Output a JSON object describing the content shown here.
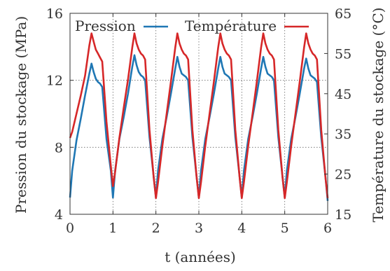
{
  "chart_data": {
    "type": "line",
    "xlabel": "t (années)",
    "ylabel_left": "Pression du stockage (MPa)",
    "ylabel_right": "Température du stockage (°C)",
    "x_ticks": [
      "0",
      "1",
      "2",
      "3",
      "4",
      "5",
      "6"
    ],
    "y_left_ticks": [
      "4",
      "8",
      "12",
      "16"
    ],
    "y_right_ticks": [
      "15",
      "25",
      "35",
      "45",
      "55",
      "65"
    ],
    "xlim": [
      0,
      6
    ],
    "ylim_left": [
      4,
      16
    ],
    "ylim_right": [
      15,
      65
    ],
    "grid": "dotted",
    "legend_position": "top",
    "series": [
      {
        "name": "Pression",
        "axis": "left",
        "color": "#1f77b4",
        "x": [
          0,
          0.05,
          0.15,
          0.25,
          0.35,
          0.45,
          0.5,
          0.55,
          0.6,
          0.65,
          0.7,
          0.75,
          0.85,
          0.95,
          1.0,
          1.05,
          1.15,
          1.25,
          1.35,
          1.45,
          1.5,
          1.55,
          1.6,
          1.65,
          1.7,
          1.75,
          1.85,
          1.95,
          2.0,
          2.05,
          2.15,
          2.25,
          2.35,
          2.45,
          2.5,
          2.55,
          2.6,
          2.65,
          2.7,
          2.75,
          2.85,
          2.95,
          3.0,
          3.05,
          3.15,
          3.25,
          3.35,
          3.45,
          3.5,
          3.55,
          3.6,
          3.65,
          3.7,
          3.75,
          3.85,
          3.95,
          4.0,
          4.05,
          4.15,
          4.25,
          4.35,
          4.45,
          4.5,
          4.55,
          4.6,
          4.65,
          4.7,
          4.75,
          4.85,
          4.95,
          5.0,
          5.05,
          5.15,
          5.25,
          5.35,
          5.45,
          5.5,
          5.55,
          5.6,
          5.65,
          5.7,
          5.75,
          5.85,
          5.95,
          6.0
        ],
        "y": [
          5.0,
          6.6,
          8.4,
          9.7,
          11.1,
          12.4,
          13.0,
          12.5,
          12.1,
          11.9,
          11.8,
          11.6,
          8.5,
          6.6,
          5.0,
          6.6,
          8.5,
          9.8,
          11.2,
          12.8,
          13.5,
          12.9,
          12.5,
          12.3,
          12.2,
          12.0,
          8.6,
          6.2,
          5.0,
          6.6,
          8.5,
          9.8,
          11.2,
          12.7,
          13.4,
          12.8,
          12.4,
          12.3,
          12.2,
          12.0,
          8.6,
          6.2,
          5.0,
          6.6,
          8.5,
          9.8,
          11.2,
          12.7,
          13.4,
          12.8,
          12.4,
          12.3,
          12.2,
          12.0,
          8.6,
          6.2,
          5.0,
          6.6,
          8.5,
          9.8,
          11.2,
          12.7,
          13.4,
          12.8,
          12.4,
          12.3,
          12.2,
          12.0,
          8.6,
          6.2,
          5.0,
          6.6,
          8.5,
          9.8,
          11.2,
          12.7,
          13.3,
          12.7,
          12.3,
          12.2,
          12.1,
          11.9,
          8.6,
          6.2,
          4.8
        ]
      },
      {
        "name": "Température",
        "axis": "right",
        "color": "#d62728",
        "x": [
          0,
          0.05,
          0.15,
          0.25,
          0.35,
          0.45,
          0.5,
          0.55,
          0.6,
          0.65,
          0.7,
          0.75,
          0.85,
          0.95,
          1.0,
          1.05,
          1.15,
          1.25,
          1.35,
          1.45,
          1.5,
          1.55,
          1.6,
          1.65,
          1.7,
          1.75,
          1.85,
          1.95,
          2.0,
          2.05,
          2.15,
          2.25,
          2.35,
          2.45,
          2.5,
          2.55,
          2.6,
          2.65,
          2.7,
          2.75,
          2.85,
          2.95,
          3.0,
          3.05,
          3.15,
          3.25,
          3.35,
          3.45,
          3.5,
          3.55,
          3.6,
          3.65,
          3.7,
          3.75,
          3.85,
          3.95,
          4.0,
          4.05,
          4.15,
          4.25,
          4.35,
          4.45,
          4.5,
          4.55,
          4.6,
          4.65,
          4.7,
          4.75,
          4.85,
          4.95,
          5.0,
          5.05,
          5.15,
          5.25,
          5.35,
          5.45,
          5.5,
          5.55,
          5.6,
          5.65,
          5.7,
          5.75,
          5.85,
          5.95,
          6.0
        ],
        "y": [
          34.0,
          35.5,
          40.0,
          44.5,
          49.5,
          57.0,
          60.0,
          58.0,
          56.0,
          55.0,
          54.0,
          53.0,
          38.0,
          27.0,
          22.0,
          25.5,
          34.0,
          41.5,
          48.5,
          56.5,
          60.0,
          57.5,
          56.0,
          55.0,
          54.5,
          53.5,
          36.0,
          24.0,
          19.0,
          23.0,
          32.0,
          40.0,
          48.0,
          56.5,
          60.0,
          57.5,
          56.0,
          55.0,
          54.5,
          53.5,
          36.0,
          24.0,
          19.0,
          23.0,
          32.0,
          40.0,
          48.0,
          56.5,
          60.0,
          57.5,
          56.0,
          55.0,
          54.5,
          53.5,
          36.0,
          24.0,
          19.0,
          23.0,
          32.0,
          40.0,
          48.0,
          56.5,
          60.0,
          57.5,
          56.0,
          55.0,
          54.5,
          53.5,
          36.0,
          24.0,
          19.0,
          23.0,
          32.0,
          40.0,
          48.0,
          56.5,
          60.0,
          57.5,
          56.0,
          55.0,
          54.5,
          53.5,
          36.0,
          24.0,
          19.0
        ]
      }
    ]
  }
}
